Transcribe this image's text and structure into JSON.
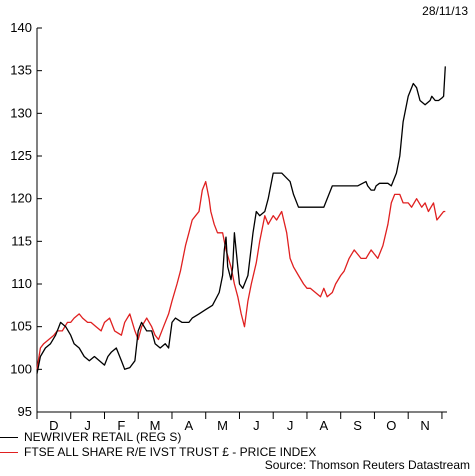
{
  "date_label": "28/11/13",
  "source": "Source: Thomson Reuters Datastream",
  "colors": {
    "series1": "#000000",
    "series2": "#e02020",
    "axis": "#000000"
  },
  "chart_data": {
    "type": "line",
    "y_ticks": [
      95,
      100,
      105,
      110,
      115,
      120,
      125,
      130,
      135,
      140
    ],
    "ylim": [
      95,
      140
    ],
    "x_ticks": [
      "D",
      "J",
      "F",
      "M",
      "A",
      "M",
      "J",
      "J",
      "A",
      "S",
      "O",
      "N"
    ],
    "x_range": [
      0,
      12.15
    ],
    "grid": false,
    "legend_position": "bottom-left",
    "series": [
      {
        "name": "NEWRIVER RETAIL (REG S)",
        "color": "#000000",
        "x": [
          0,
          0.1,
          0.25,
          0.4,
          0.55,
          0.7,
          0.85,
          1.0,
          1.1,
          1.25,
          1.4,
          1.55,
          1.7,
          1.85,
          2.0,
          2.1,
          2.2,
          2.35,
          2.5,
          2.6,
          2.75,
          2.9,
          3.0,
          3.1,
          3.25,
          3.4,
          3.5,
          3.65,
          3.8,
          3.9,
          4.0,
          4.1,
          4.3,
          4.5,
          4.6,
          4.8,
          5.0,
          5.2,
          5.4,
          5.5,
          5.55,
          5.6,
          5.65,
          5.75,
          5.8,
          5.85,
          5.9,
          6.0,
          6.1,
          6.25,
          6.4,
          6.5,
          6.6,
          6.75,
          6.85,
          7.0,
          7.25,
          7.5,
          7.6,
          7.75,
          8.0,
          8.25,
          8.5,
          8.75,
          9.0,
          9.25,
          9.5,
          9.75,
          9.8,
          9.9,
          10.0,
          10.05,
          10.15,
          10.25,
          10.4,
          10.5,
          10.55,
          10.65,
          10.75,
          10.85,
          11.0,
          11.15,
          11.25,
          11.35,
          11.5,
          11.65,
          11.7,
          11.8,
          11.9,
          12.0,
          12.05,
          12.1
        ],
        "values": [
          99.5,
          101.5,
          102.5,
          103,
          104,
          105.5,
          105,
          104,
          103,
          102.5,
          101.5,
          101,
          101.5,
          101,
          100.5,
          101.5,
          102,
          102.5,
          101,
          100,
          100.2,
          101,
          104.5,
          105.5,
          104.5,
          104.5,
          103,
          102.5,
          103,
          102.5,
          105.5,
          106,
          105.5,
          105.5,
          106,
          106.5,
          107,
          107.5,
          109,
          111,
          114,
          115.5,
          112,
          110.5,
          112,
          116,
          114,
          110,
          109.5,
          111,
          116,
          118.5,
          118,
          118.5,
          120,
          123,
          123,
          122,
          120.5,
          119,
          119,
          119,
          119,
          121.5,
          121.5,
          121.5,
          121.5,
          122,
          121.5,
          121,
          121,
          121.5,
          121.8,
          121.8,
          121.8,
          121.5,
          122,
          123,
          125,
          129,
          132,
          133.5,
          133,
          131.5,
          131,
          131.5,
          132,
          131.5,
          131.5,
          131.8,
          132,
          135.5
        ]
      },
      {
        "name": "FTSE ALL SHARE R/E IVST TRUST £ - PRICE INDEX",
        "color": "#e02020",
        "x": [
          0,
          0.1,
          0.2,
          0.35,
          0.5,
          0.6,
          0.75,
          0.9,
          1.0,
          1.1,
          1.25,
          1.35,
          1.5,
          1.6,
          1.75,
          1.9,
          2.0,
          2.15,
          2.3,
          2.5,
          2.6,
          2.75,
          2.9,
          3.0,
          3.1,
          3.25,
          3.4,
          3.5,
          3.6,
          3.75,
          3.9,
          4.0,
          4.15,
          4.25,
          4.4,
          4.5,
          4.6,
          4.7,
          4.8,
          4.9,
          5.0,
          5.1,
          5.15,
          5.25,
          5.35,
          5.5,
          5.6,
          5.75,
          5.85,
          5.95,
          6.05,
          6.15,
          6.25,
          6.35,
          6.5,
          6.6,
          6.75,
          6.85,
          7.0,
          7.1,
          7.25,
          7.4,
          7.5,
          7.6,
          7.75,
          7.9,
          8.0,
          8.1,
          8.25,
          8.4,
          8.5,
          8.6,
          8.75,
          8.85,
          9.0,
          9.1,
          9.25,
          9.4,
          9.5,
          9.6,
          9.75,
          9.9,
          10.0,
          10.1,
          10.25,
          10.4,
          10.5,
          10.6,
          10.75,
          10.85,
          11.0,
          11.1,
          11.25,
          11.4,
          11.5,
          11.6,
          11.75,
          11.85,
          11.95,
          12.05,
          12.1
        ],
        "values": [
          100,
          102.5,
          103,
          103.5,
          104,
          104.5,
          104.5,
          105.5,
          105.5,
          106,
          106.5,
          106,
          105.5,
          105.5,
          105,
          104.5,
          105.5,
          106,
          104.5,
          104,
          105.5,
          106.5,
          104.5,
          103.5,
          105,
          106,
          105,
          104,
          103.5,
          105,
          106.5,
          108,
          110,
          111.5,
          114.5,
          116,
          117.5,
          118,
          118.5,
          121,
          122,
          120,
          118.5,
          117,
          116,
          116,
          114,
          112,
          110,
          108.5,
          106.5,
          105,
          108,
          110,
          112.5,
          115,
          118,
          117,
          118,
          117.5,
          118.5,
          116,
          113,
          112,
          111,
          110,
          109.5,
          109.5,
          109,
          108.5,
          109.5,
          108.5,
          109,
          110,
          111,
          111.5,
          113,
          114,
          113.5,
          113,
          113,
          114,
          113.5,
          113,
          114.5,
          117,
          119.5,
          120.5,
          120.5,
          119.5,
          119.5,
          119,
          120,
          119,
          119.5,
          118.5,
          119.5,
          117.5,
          118,
          118.5,
          118.5
        ]
      }
    ]
  }
}
